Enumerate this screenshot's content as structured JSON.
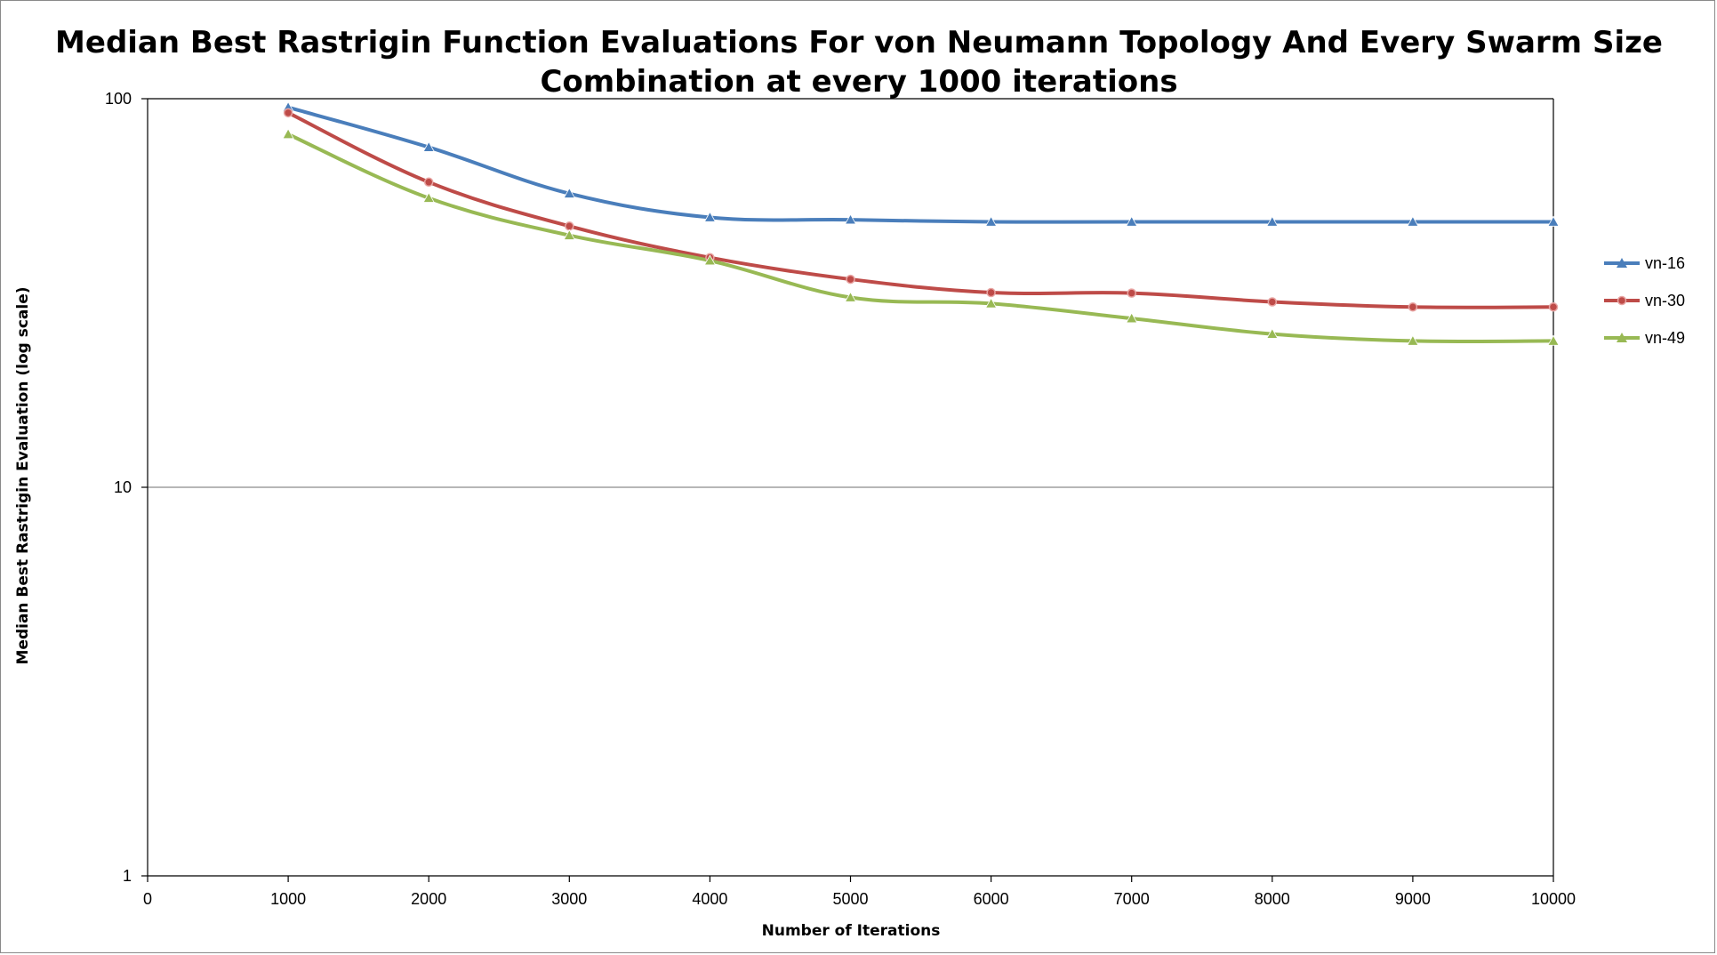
{
  "chart_data": {
    "type": "line",
    "title_lines": [
      "Median Best Rastrigin Function Evaluations For von Neumann Topology And Every Swarm Size",
      "Combination at every 1000 iterations"
    ],
    "xlabel": "Number of Iterations",
    "ylabel": "Median Best Rastrigin Evaluation (log scale)",
    "xlim": [
      0,
      10000
    ],
    "ylim": [
      1,
      100
    ],
    "yscale": "log",
    "x_ticks": [
      "0",
      "1000",
      "2000",
      "3000",
      "4000",
      "5000",
      "6000",
      "7000",
      "8000",
      "9000",
      "10000"
    ],
    "y_ticks": [
      "1",
      "10",
      "100"
    ],
    "grid": "horizontal major gridlines",
    "legend_position": "right",
    "x": [
      1000,
      2000,
      3000,
      4000,
      5000,
      6000,
      7000,
      8000,
      9000,
      10000
    ],
    "series": [
      {
        "name": "vn-16",
        "color": "#4a7ebb",
        "marker": "triangle",
        "values": [
          95,
          75,
          57,
          49.5,
          48.8,
          48.2,
          48.2,
          48.2,
          48.2,
          48.2
        ]
      },
      {
        "name": "vn-30",
        "color": "#be4b48",
        "marker": "circle",
        "values": [
          92,
          61,
          47,
          39,
          34.3,
          31.7,
          31.6,
          30,
          29.1,
          29.1
        ]
      },
      {
        "name": "vn-49",
        "color": "#98b954",
        "marker": "triangle",
        "values": [
          81,
          55.5,
          44.5,
          38.3,
          30.8,
          29.7,
          27.2,
          24.8,
          23.8,
          23.8
        ]
      }
    ]
  }
}
